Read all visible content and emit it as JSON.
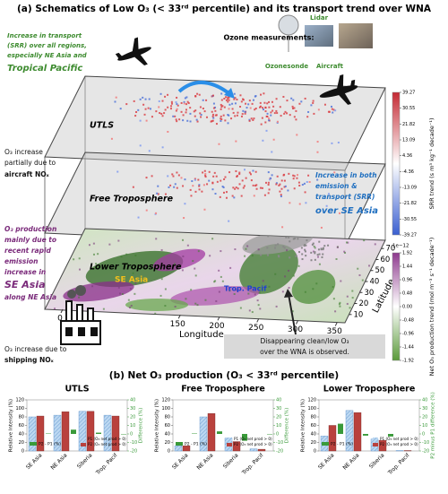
{
  "schematic": {
    "title": "(a) Schematics of Low O₃ (< 33ʳᵈ percentile) and its transport trend over WNA",
    "annotations": {
      "transport": [
        "Increase in transport",
        "(SRR) over all regions,",
        "especially NE Asia and",
        "Tropical Pacific"
      ],
      "measurements": "Ozone measurements:",
      "lidar": "Lidar",
      "ozonesonde": "Ozonesonde",
      "aircraft": "Aircraft",
      "aircraft_nox": [
        "O₃ increase",
        "partially due to",
        "aircraft NOₓ"
      ],
      "se_asia_transport": [
        "Increase in both",
        "emission &",
        "transport (SRR)",
        "over SE Asia"
      ],
      "production": [
        "O₃ production",
        "mainly due to",
        "recent rapid",
        "emission",
        "increase in",
        "SE Asia",
        "along NE Asia"
      ],
      "shipping": [
        "O₃ increase due to",
        "shipping NOₓ"
      ],
      "disappearing": [
        "Disappearing clean/low O₃",
        "over the WNA is observed."
      ]
    },
    "layers": [
      "UTLS",
      "Free Troposphere",
      "Lower Troposphere"
    ],
    "regions": [
      "SE Asia",
      "Trop. Pacif"
    ],
    "xlabel": "Longitude",
    "ylabel": "Latitude",
    "xlim": [
      0,
      360
    ],
    "xticks": [
      0,
      150,
      200,
      250,
      300,
      350
    ],
    "ylim": [
      10,
      70
    ],
    "yticks": [
      10,
      20,
      30,
      40,
      50,
      60,
      70
    ],
    "colorbars": [
      {
        "label": "SRR trend (s m³ kg⁻¹ decade⁻¹)",
        "lim": [
          -39.27,
          39.27
        ],
        "ticks": [
          39.27,
          30.55,
          21.82,
          13.09,
          4.36,
          -4.36,
          -13.09,
          -21.82,
          -30.55,
          -39.27
        ],
        "colors": [
          "#c42a34",
          "#3a5fd0"
        ]
      },
      {
        "exponent": "1e−12",
        "label": "Net O₃ production trend (mol m⁻³ s⁻¹ decade⁻¹)",
        "lim": [
          -1.92,
          1.92
        ],
        "ticks": [
          1.92,
          1.44,
          0.96,
          0.48,
          {
            "value": 0,
            "label": "0.00"
          },
          -0.48,
          -0.96,
          -1.44,
          -1.92
        ],
        "colors": [
          "#8e3a8e",
          "#5a9a3a"
        ]
      }
    ]
  },
  "panel_b_title": "(b) Net O₃ production (O₃ < 33ʳᵈ percentile)",
  "chart_data": [
    {
      "type": "bar",
      "title": "UTLS",
      "categories": [
        "SE Asia",
        "NE Asia",
        "Siberia",
        "Trop. Pacif"
      ],
      "ylabel": "Relative Intensity (%)",
      "y2label": "Difference (%)",
      "ylim": [
        0,
        120
      ],
      "yticks": [
        0,
        20,
        40,
        60,
        80,
        100,
        120
      ],
      "y2lim": [
        -20,
        40
      ],
      "y2ticks": [
        -20,
        -10,
        0,
        10,
        20,
        30,
        40
      ],
      "series": [
        {
          "name": "P1 (O₃ net prod > 0)",
          "color": "#bcd8f2",
          "values": [
            80,
            84,
            93,
            84
          ]
        },
        {
          "name": "P2 (O₃ net prod > 0)",
          "color": "#b9413d",
          "values": [
            82,
            92,
            93,
            82
          ]
        },
        {
          "name": "P2 - P1 (%)",
          "color": "#3a9a3a",
          "axis": "y2",
          "values": [
            0.5,
            5,
            1.5,
            -0.5
          ]
        }
      ]
    },
    {
      "type": "bar",
      "title": "Free Troposphere",
      "categories": [
        "SE Asia",
        "NE Asia",
        "Siberia",
        "Trop. Pacif"
      ],
      "ylabel": "Relative Intensity (%)",
      "y2label": "Difference (%)",
      "ylim": [
        0,
        120
      ],
      "yticks": [
        0,
        20,
        40,
        60,
        80,
        100,
        120
      ],
      "y2lim": [
        -20,
        40
      ],
      "y2ticks": [
        -20,
        -10,
        0,
        10,
        20,
        30,
        40
      ],
      "series": [
        {
          "name": "P1 (O₃ net prod > 0)",
          "color": "#bcd8f2",
          "values": [
            12,
            80,
            30,
            5
          ]
        },
        {
          "name": "P2 (O₃ net prod > 0)",
          "color": "#b9413d",
          "values": [
            12,
            88,
            22,
            4
          ]
        },
        {
          "name": "P2 - P1 (%)",
          "color": "#3a9a3a",
          "axis": "y2",
          "values": [
            0.5,
            3,
            -8,
            -0.5
          ]
        }
      ]
    },
    {
      "type": "bar",
      "title": "Lower Troposphere",
      "categories": [
        "SE Asia",
        "NE Asia",
        "Siberia",
        "Trop. Pacif"
      ],
      "ylabel": "Relative Intensity (%)",
      "y2label": "P2 minus P1 difference (%)",
      "ylim": [
        0,
        120
      ],
      "yticks": [
        0,
        20,
        40,
        60,
        80,
        100,
        120
      ],
      "y2lim": [
        -20,
        40
      ],
      "y2ticks": [
        -20,
        -10,
        0,
        10,
        20,
        30,
        40
      ],
      "series": [
        {
          "name": "P1 (O₃ net prod > 0)",
          "color": "#bcd8f2",
          "values": [
            35,
            95,
            28,
            1
          ]
        },
        {
          "name": "P2 (O₃ net prod > 0)",
          "color": "#b9413d",
          "values": [
            60,
            90,
            25,
            1
          ]
        },
        {
          "name": "P2 - P1 (%)",
          "color": "#3a9a3a",
          "axis": "y2",
          "values": [
            12,
            -2,
            -3,
            0
          ]
        }
      ]
    }
  ]
}
